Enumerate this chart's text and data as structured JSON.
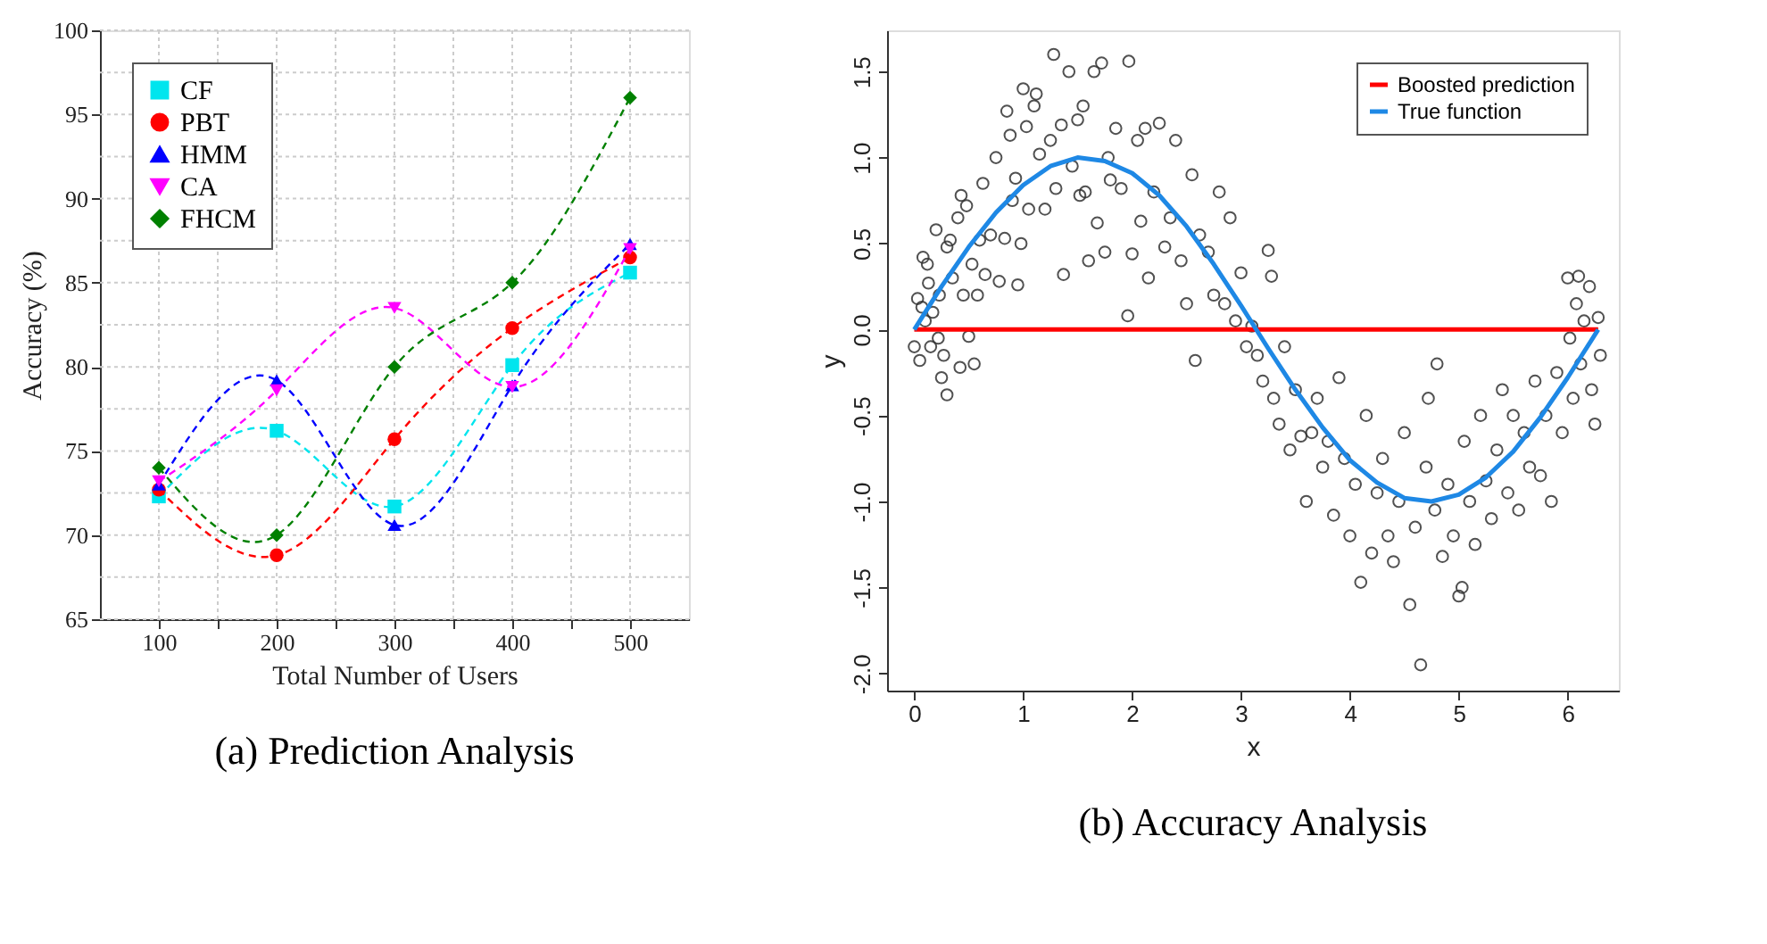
{
  "chart_data": [
    {
      "type": "line",
      "xlabel": "Total Number of Users",
      "ylabel": "Accuracy (%)",
      "x": [
        100,
        200,
        300,
        400,
        500
      ],
      "xlim": [
        50,
        550
      ],
      "xticks": [
        100,
        {
          "value": 150,
          "label": null
        },
        200,
        {
          "value": 250,
          "label": null
        },
        300,
        {
          "value": 350,
          "label": null
        },
        400,
        {
          "value": 450,
          "label": null
        },
        500
      ],
      "ylim": [
        65,
        100
      ],
      "yticks": [
        65,
        {
          "value": 67.5,
          "label": null
        },
        70,
        {
          "value": 72.5,
          "label": null
        },
        75,
        {
          "value": 77.5,
          "label": null
        },
        80,
        {
          "value": 82.5,
          "label": null
        },
        85,
        {
          "value": 87.5,
          "label": null
        },
        90,
        {
          "value": 92.5,
          "label": null
        },
        95,
        {
          "value": 97.5,
          "label": null
        },
        100
      ],
      "grid": true,
      "legend": "top left",
      "line_style": "dashed",
      "annotations": [
        "(a)      Prediction Analysis"
      ],
      "series": [
        {
          "name": "CF",
          "color": "#00e5ee",
          "marker": "square",
          "values": [
            72.3,
            76.2,
            71.7,
            80.1,
            85.6
          ]
        },
        {
          "name": "PBT",
          "color": "#ff0000",
          "marker": "circle",
          "values": [
            72.7,
            68.8,
            75.7,
            82.3,
            86.5
          ]
        },
        {
          "name": "HMM",
          "color": "#0000ff",
          "marker": "triangle",
          "values": [
            73.0,
            79.2,
            70.6,
            78.9,
            87.3
          ]
        },
        {
          "name": "CA",
          "color": "#ff00ff",
          "marker": "triangle-down",
          "values": [
            73.2,
            78.6,
            83.5,
            78.8,
            87.0
          ]
        },
        {
          "name": "FHCM",
          "color": "#008000",
          "marker": "diamond",
          "values": [
            74.0,
            70.0,
            80.0,
            85.0,
            96.0
          ]
        }
      ]
    },
    {
      "type": "scatter",
      "xlabel": "x",
      "ylabel": "y",
      "xlim": [
        -0.25,
        6.47
      ],
      "xticks": [
        0,
        1,
        2,
        3,
        4,
        5,
        6
      ],
      "ylim": [
        -2.1,
        1.74
      ],
      "yticks": [
        {
          "value": -2,
          "label": "-2.0"
        },
        {
          "value": -1.5,
          "label": "-1.5"
        },
        {
          "value": -1,
          "label": "-1.0"
        },
        {
          "value": -0.5,
          "label": "-0.5"
        },
        {
          "value": 0,
          "label": "0.0"
        },
        {
          "value": 0.5,
          "label": "0.5"
        },
        {
          "value": 1,
          "label": "1.0"
        },
        {
          "value": 1.5,
          "label": "1.5"
        }
      ],
      "grid": false,
      "legend": "top right",
      "annotations": [
        "(b) Accuracy Analysis"
      ],
      "series": [
        {
          "type": "scatter",
          "color": "#333333",
          "marker": "circle",
          "x": [
            0.0,
            0.03,
            0.05,
            0.07,
            0.08,
            0.1,
            0.12,
            0.13,
            0.15,
            0.17,
            0.2,
            0.22,
            0.23,
            0.25,
            0.27,
            0.3,
            0.3,
            0.33,
            0.35,
            0.4,
            0.42,
            0.43,
            0.45,
            0.48,
            0.5,
            0.53,
            0.55,
            0.58,
            0.6,
            0.63,
            0.65,
            0.7,
            0.75,
            0.78,
            0.83,
            0.85,
            0.88,
            0.9,
            0.93,
            0.95,
            0.98,
            1.0,
            1.03,
            1.05,
            1.1,
            1.12,
            1.15,
            1.2,
            1.25,
            1.28,
            1.3,
            1.35,
            1.37,
            1.42,
            1.45,
            1.5,
            1.52,
            1.55,
            1.57,
            1.6,
            1.65,
            1.68,
            1.72,
            1.75,
            1.78,
            1.8,
            1.85,
            1.9,
            1.96,
            1.97,
            2.0,
            2.05,
            2.08,
            2.12,
            2.15,
            2.2,
            2.25,
            2.3,
            2.35,
            2.4,
            2.45,
            2.5,
            2.55,
            2.58,
            2.62,
            2.7,
            2.75,
            2.8,
            2.85,
            2.9,
            2.95,
            3.0,
            3.05,
            3.1,
            3.15,
            3.2,
            3.25,
            3.28,
            3.3,
            3.35,
            3.4,
            3.45,
            3.5,
            3.55,
            3.6,
            3.65,
            3.7,
            3.75,
            3.8,
            3.85,
            3.9,
            3.95,
            4.0,
            4.05,
            4.1,
            4.15,
            4.2,
            4.25,
            4.3,
            4.35,
            4.4,
            4.45,
            4.5,
            4.55,
            4.6,
            4.65,
            4.7,
            4.72,
            4.78,
            4.8,
            4.85,
            4.9,
            4.95,
            5.0,
            5.03,
            5.05,
            5.1,
            5.15,
            5.2,
            5.25,
            5.3,
            5.35,
            5.4,
            5.45,
            5.5,
            5.55,
            5.6,
            5.65,
            5.7,
            5.75,
            5.8,
            5.85,
            5.9,
            5.95,
            6.0,
            6.02,
            6.05,
            6.08,
            6.1,
            6.12,
            6.15,
            6.2,
            6.22,
            6.25,
            6.28,
            6.3
          ],
          "values": [
            -0.1,
            0.18,
            -0.18,
            0.13,
            0.42,
            0.05,
            0.38,
            0.27,
            -0.1,
            0.1,
            0.58,
            -0.05,
            0.2,
            -0.28,
            -0.15,
            -0.38,
            0.48,
            0.52,
            0.3,
            0.65,
            -0.22,
            0.78,
            0.2,
            0.72,
            -0.04,
            0.38,
            -0.2,
            0.2,
            0.52,
            0.85,
            0.32,
            0.55,
            1.0,
            0.28,
            0.53,
            1.27,
            1.13,
            0.75,
            0.88,
            0.26,
            0.5,
            1.4,
            1.18,
            0.7,
            1.3,
            1.37,
            1.02,
            0.7,
            1.1,
            1.6,
            0.82,
            1.19,
            0.32,
            1.5,
            0.95,
            1.22,
            0.78,
            1.3,
            0.8,
            0.4,
            1.5,
            0.62,
            1.55,
            0.45,
            1.0,
            0.87,
            1.17,
            0.82,
            0.08,
            1.56,
            0.44,
            1.1,
            0.63,
            1.17,
            0.3,
            0.8,
            1.2,
            0.48,
            0.65,
            1.1,
            0.4,
            0.15,
            0.9,
            -0.18,
            0.55,
            0.45,
            0.2,
            0.8,
            0.15,
            0.65,
            0.05,
            0.33,
            -0.1,
            0.02,
            -0.15,
            -0.3,
            0.46,
            0.31,
            -0.4,
            -0.55,
            -0.1,
            -0.7,
            -0.35,
            -0.62,
            -1.0,
            -0.6,
            -0.4,
            -0.8,
            -0.65,
            -1.08,
            -0.28,
            -0.75,
            -1.2,
            -0.9,
            -1.47,
            -0.5,
            -1.3,
            -0.95,
            -0.75,
            -1.2,
            -1.35,
            -1.0,
            -0.6,
            -1.6,
            -1.15,
            -1.95,
            -0.8,
            -0.4,
            -1.05,
            -0.2,
            -1.32,
            -0.9,
            -1.2,
            -1.55,
            -1.5,
            -0.65,
            -1.0,
            -1.25,
            -0.5,
            -0.88,
            -1.1,
            -0.7,
            -0.35,
            -0.95,
            -0.5,
            -1.05,
            -0.6,
            -0.8,
            -0.3,
            -0.85,
            -0.5,
            -1.0,
            -0.25,
            -0.6,
            0.3,
            -0.05,
            -0.4,
            0.15,
            0.31,
            -0.2,
            0.05,
            0.25,
            -0.35,
            -0.55,
            0.07,
            -0.15
          ]
        },
        {
          "type": "line",
          "name": "Boosted prediction",
          "color": "#ff0000",
          "line_style": "solid",
          "x": [
            0,
            6.28
          ],
          "values": [
            0,
            0
          ]
        },
        {
          "type": "line",
          "name": "True function",
          "color": "#1e88e5",
          "line_style": "solid",
          "x": [
            0,
            0.25,
            0.5,
            0.75,
            1,
            1.25,
            1.5,
            1.75,
            2,
            2.25,
            2.5,
            2.75,
            3,
            3.25,
            3.5,
            3.75,
            4,
            4.25,
            4.5,
            4.75,
            5,
            5.25,
            5.5,
            5.75,
            6,
            6.28
          ],
          "values": [
            0,
            0.25,
            0.48,
            0.68,
            0.84,
            0.95,
            1.0,
            0.98,
            0.91,
            0.78,
            0.6,
            0.38,
            0.14,
            -0.11,
            -0.35,
            -0.57,
            -0.76,
            -0.89,
            -0.98,
            -1.0,
            -0.96,
            -0.86,
            -0.71,
            -0.51,
            -0.28,
            0
          ]
        }
      ]
    }
  ]
}
